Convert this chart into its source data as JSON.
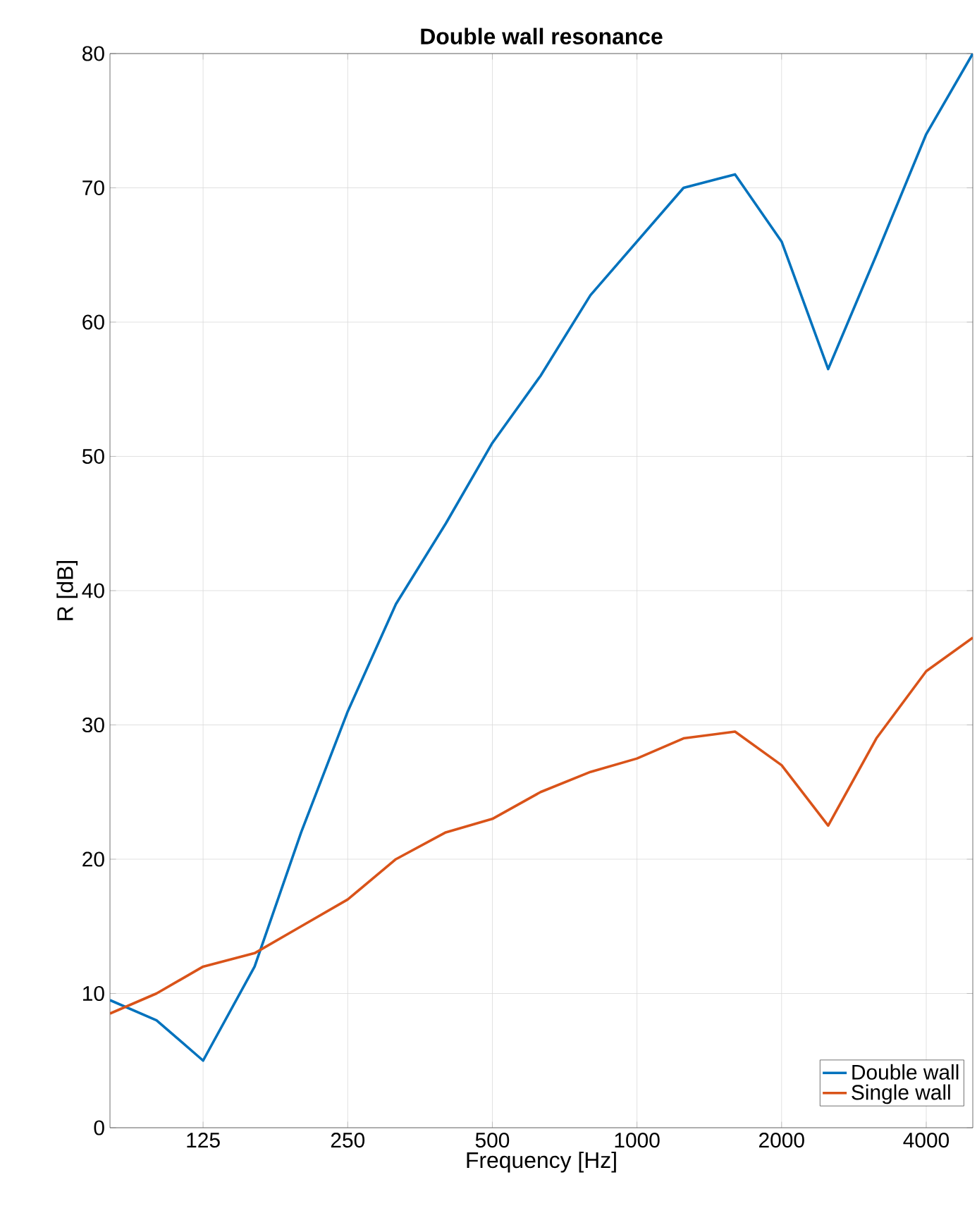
{
  "chart_data": {
    "type": "line",
    "title": "Double wall resonance",
    "xlabel": "Frequency   [Hz]",
    "ylabel": "R   [dB]",
    "log": "x",
    "x": [
      80,
      100,
      125,
      160,
      200,
      250,
      315,
      400,
      500,
      630,
      800,
      1000,
      1250,
      1600,
      2000,
      2500,
      3150,
      4000,
      5000
    ],
    "series": [
      {
        "name": "Double wall",
        "color": "#0072bd",
        "values": [
          9.5,
          8,
          5,
          12,
          22,
          31,
          39,
          45,
          51,
          56,
          62,
          66,
          70,
          71,
          66,
          56.5,
          65,
          74,
          80
        ]
      },
      {
        "name": "Single wall",
        "color": "#d95319",
        "values": [
          8.5,
          10,
          12,
          13,
          15,
          17,
          20,
          22,
          23,
          25,
          26.5,
          27.5,
          29,
          29.5,
          27,
          22.5,
          29,
          34,
          36.5
        ]
      }
    ],
    "xlim": [
      80,
      5000
    ],
    "ylim": [
      0,
      80
    ],
    "xticks": [
      125,
      250,
      500,
      1000,
      2000,
      4000
    ],
    "yticks": [
      0,
      10,
      20,
      30,
      40,
      50,
      60,
      70,
      80
    ],
    "grid": true,
    "legend": "bottom right",
    "marker": "none",
    "line_style": "solid"
  }
}
